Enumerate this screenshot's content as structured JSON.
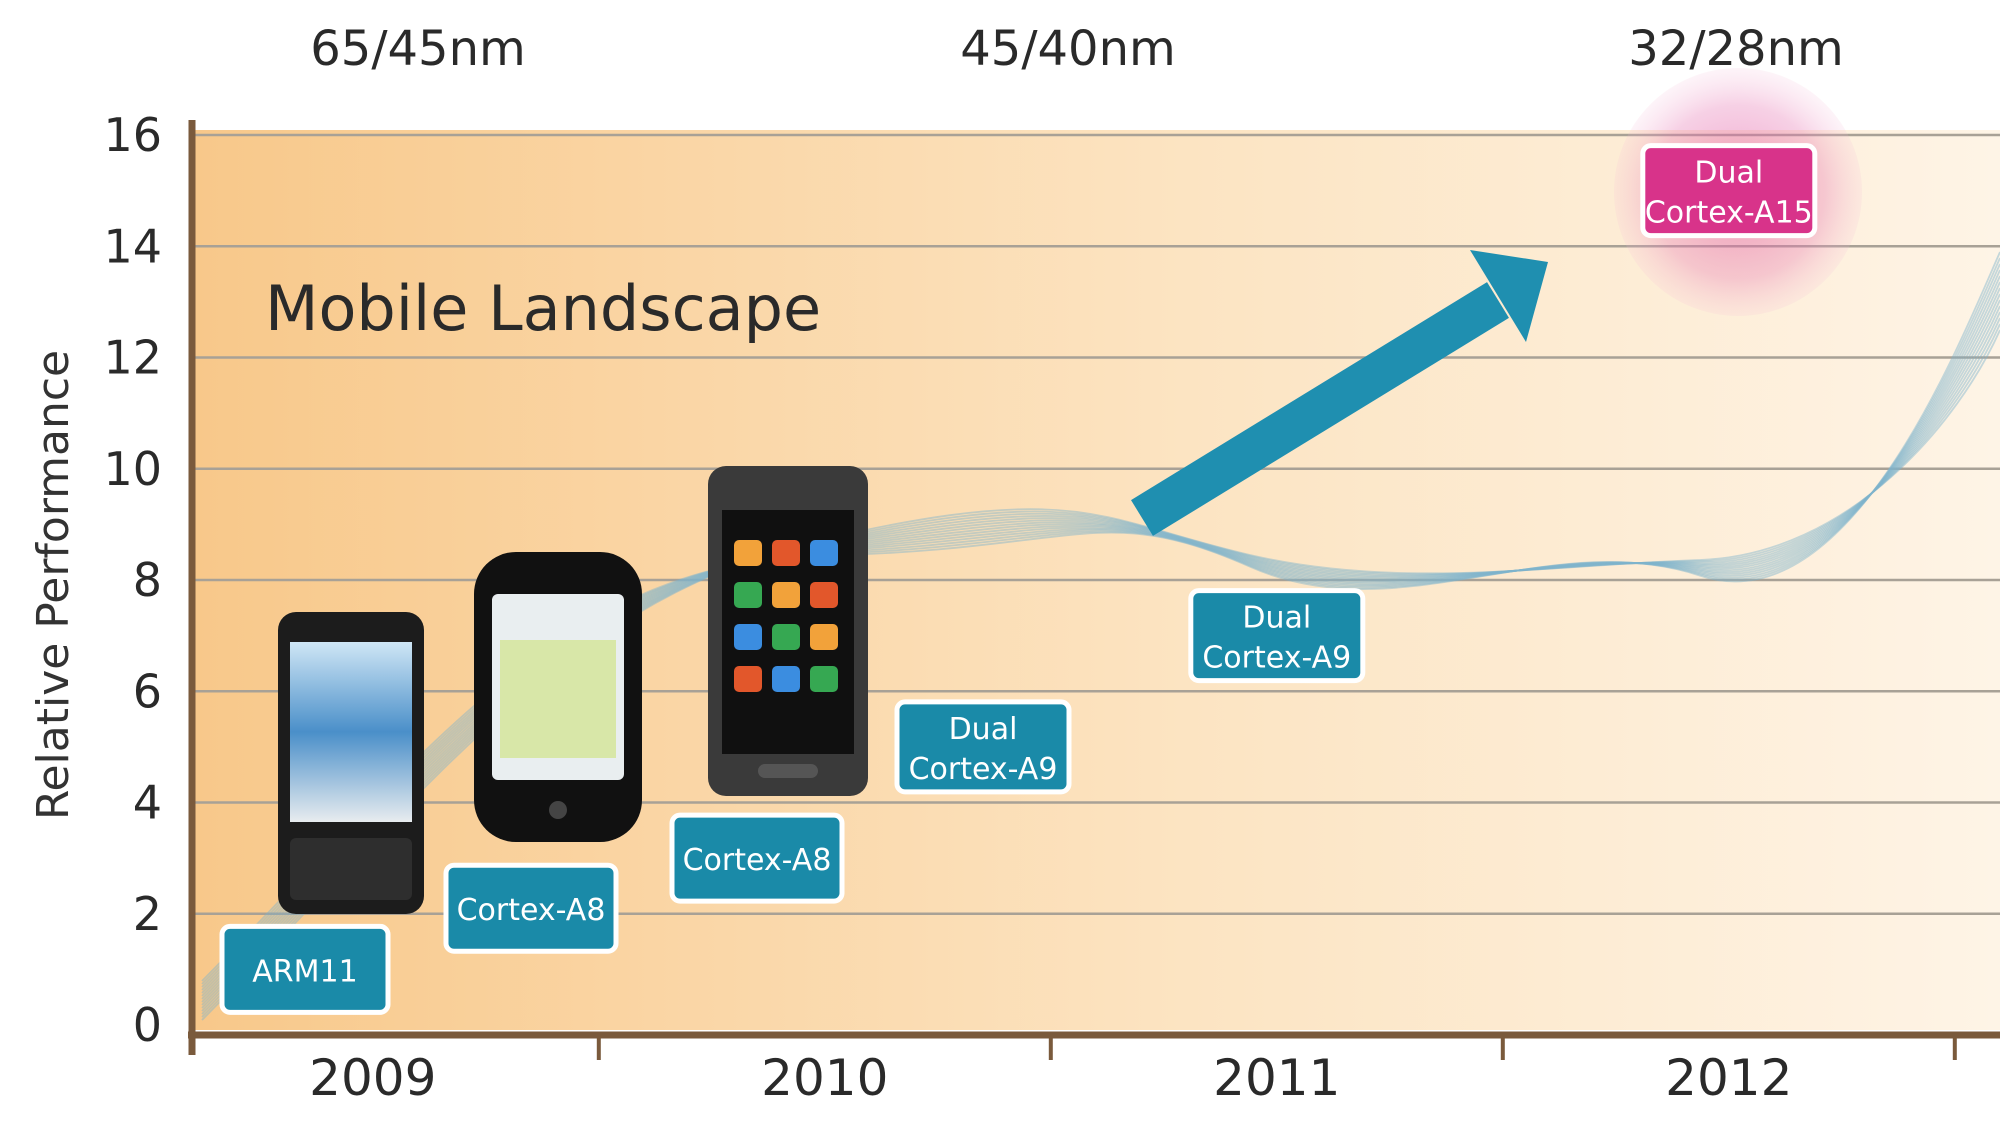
{
  "process_nodes": [
    "65/45nm",
    "45/40nm",
    "32/28nm"
  ],
  "chart_data": {
    "type": "scatter",
    "title": "Mobile Landscape",
    "xlabel": "",
    "ylabel": "Relative Performance",
    "categories": [
      "2009",
      "2010",
      "2011",
      "2012"
    ],
    "yticks": [
      "0",
      "2",
      "4",
      "6",
      "8",
      "10",
      "12",
      "14",
      "16"
    ],
    "ylim": [
      0,
      16
    ],
    "grid": true,
    "points": [
      {
        "label": "ARM11",
        "x": 2008.85,
        "y": 1
      },
      {
        "label": "Cortex-A8",
        "x": 2009.35,
        "y": 2.1
      },
      {
        "label": "Cortex-A8",
        "x": 2009.85,
        "y": 3
      },
      {
        "label": "Dual Cortex-A9",
        "x": 2010.35,
        "y": 5
      },
      {
        "label": "Dual Cortex-A9",
        "x": 2011.0,
        "y": 7
      },
      {
        "label": "Dual Cortex-A15",
        "x": 2012.0,
        "y": 15
      }
    ],
    "highlight_color": "#d8338a",
    "accent_color": "#1a8aa8"
  }
}
